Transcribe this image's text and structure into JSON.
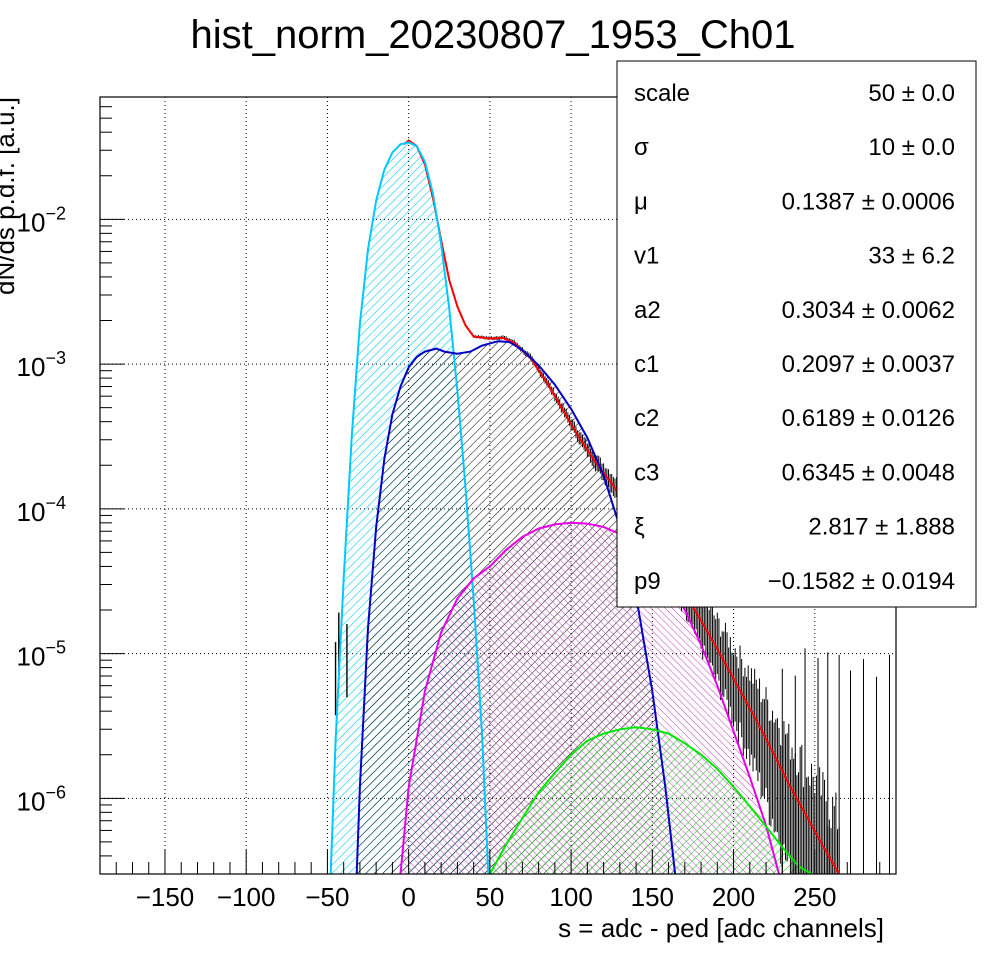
{
  "chart_data": {
    "type": "histogram",
    "title": "hist_norm_20230807_1953_Ch01",
    "xlabel": "s = adc - ped [adc channels]",
    "ylabel": "dN/ds p.d.f. [a.u.]",
    "x_range": [
      -190,
      300
    ],
    "y_range": [
      3e-07,
      0.07
    ],
    "y_scale": "log",
    "grid": true,
    "x_ticks": [
      {
        "value": -150,
        "label": "−150"
      },
      {
        "value": -100,
        "label": "−100"
      },
      {
        "value": -50,
        "label": "−50"
      },
      {
        "value": 0,
        "label": "0"
      },
      {
        "value": 50,
        "label": "50"
      },
      {
        "value": 100,
        "label": "100"
      },
      {
        "value": 150,
        "label": "150"
      },
      {
        "value": 200,
        "label": "200"
      },
      {
        "value": 250,
        "label": "250"
      }
    ],
    "y_ticks": [
      {
        "value": 0.01,
        "base": "10",
        "exp": "−2"
      },
      {
        "value": 0.001,
        "base": "10",
        "exp": "−3"
      },
      {
        "value": 0.0001,
        "base": "10",
        "exp": "−4"
      },
      {
        "value": 1e-05,
        "base": "10",
        "exp": "−5"
      },
      {
        "value": 1e-06,
        "base": "10",
        "exp": "−6"
      }
    ],
    "series": [
      {
        "color": "#ff0000",
        "fill": "none",
        "points": [
          [
            -3,
            0.033
          ],
          [
            0,
            0.035
          ],
          [
            5,
            0.032
          ],
          [
            10,
            0.024
          ],
          [
            15,
            0.014
          ],
          [
            20,
            0.0072
          ],
          [
            25,
            0.0038
          ],
          [
            30,
            0.0025
          ],
          [
            35,
            0.00185
          ],
          [
            40,
            0.00155
          ],
          [
            50,
            0.0015
          ],
          [
            58,
            0.00152
          ],
          [
            65,
            0.0014
          ],
          [
            75,
            0.0011
          ],
          [
            85,
            0.00075
          ],
          [
            95,
            0.00048
          ],
          [
            105,
            0.00031
          ],
          [
            115,
            0.00021
          ],
          [
            125,
            0.00015
          ],
          [
            135,
            0.000105
          ],
          [
            145,
            7.2e-05
          ],
          [
            155,
            4.8e-05
          ],
          [
            165,
            3.1e-05
          ],
          [
            175,
            2.1e-05
          ],
          [
            185,
            1.35e-05
          ],
          [
            195,
            8.5e-06
          ],
          [
            205,
            5.3e-06
          ],
          [
            215,
            3.3e-06
          ],
          [
            225,
            2e-06
          ],
          [
            235,
            1.2e-06
          ],
          [
            245,
            7.5e-07
          ],
          [
            255,
            4.7e-07
          ],
          [
            265,
            3e-07
          ]
        ]
      },
      {
        "color": "#00c8ff",
        "fill": "#00c8ff",
        "points": [
          [
            -48,
            3e-07
          ],
          [
            -45,
            2.5e-06
          ],
          [
            -40,
            3.3e-05
          ],
          [
            -35,
            0.00032
          ],
          [
            -30,
            0.0019
          ],
          [
            -25,
            0.0062
          ],
          [
            -20,
            0.0135
          ],
          [
            -15,
            0.022
          ],
          [
            -10,
            0.029
          ],
          [
            -5,
            0.033
          ],
          [
            0,
            0.034
          ],
          [
            5,
            0.032
          ],
          [
            10,
            0.025
          ],
          [
            15,
            0.015
          ],
          [
            20,
            0.0068
          ],
          [
            25,
            0.0024
          ],
          [
            30,
            0.00065
          ],
          [
            35,
            0.00014
          ],
          [
            40,
            2.4e-05
          ],
          [
            45,
            3e-06
          ],
          [
            49,
            3e-07
          ]
        ]
      },
      {
        "color": "#0000c8",
        "fill": "#000000",
        "points": [
          [
            -32,
            3e-07
          ],
          [
            -30,
            1.2e-06
          ],
          [
            -25,
            1.5e-05
          ],
          [
            -20,
            7.5e-05
          ],
          [
            -15,
            0.00022
          ],
          [
            -10,
            0.00045
          ],
          [
            -5,
            0.0007
          ],
          [
            0,
            0.00095
          ],
          [
            5,
            0.00112
          ],
          [
            10,
            0.00122
          ],
          [
            17,
            0.00128
          ],
          [
            22,
            0.00122
          ],
          [
            30,
            0.00118
          ],
          [
            38,
            0.00122
          ],
          [
            45,
            0.00134
          ],
          [
            55,
            0.00144
          ],
          [
            62,
            0.00142
          ],
          [
            70,
            0.00125
          ],
          [
            80,
            0.00098
          ],
          [
            90,
            0.00072
          ],
          [
            100,
            0.00049
          ],
          [
            110,
            0.00031
          ],
          [
            120,
            0.00017
          ],
          [
            130,
            7.5e-05
          ],
          [
            140,
            2.5e-05
          ],
          [
            150,
            5.5e-06
          ],
          [
            158,
            1.2e-06
          ],
          [
            164,
            3e-07
          ]
        ]
      },
      {
        "color": "#e600e6",
        "fill": "#c040c0",
        "points": [
          [
            -5,
            3e-07
          ],
          [
            0,
            1.2e-06
          ],
          [
            10,
            5.5e-06
          ],
          [
            20,
            1.4e-05
          ],
          [
            30,
            2.4e-05
          ],
          [
            40,
            3.3e-05
          ],
          [
            50,
            4e-05
          ],
          [
            60,
            5.2e-05
          ],
          [
            70,
            6.4e-05
          ],
          [
            80,
            7.3e-05
          ],
          [
            90,
            7.8e-05
          ],
          [
            100,
            8e-05
          ],
          [
            110,
            7.9e-05
          ],
          [
            120,
            7.5e-05
          ],
          [
            130,
            6.7e-05
          ],
          [
            140,
            5.7e-05
          ],
          [
            150,
            4.4e-05
          ],
          [
            160,
            3.2e-05
          ],
          [
            170,
            2e-05
          ],
          [
            180,
            1.15e-05
          ],
          [
            190,
            6e-06
          ],
          [
            200,
            2.9e-06
          ],
          [
            210,
            1.4e-06
          ],
          [
            220,
            6.5e-07
          ],
          [
            228,
            3e-07
          ]
        ]
      },
      {
        "color": "#00e600",
        "fill": "#00c800",
        "points": [
          [
            50,
            3e-07
          ],
          [
            60,
            4.8e-07
          ],
          [
            70,
            7.3e-07
          ],
          [
            80,
            1.1e-06
          ],
          [
            90,
            1.5e-06
          ],
          [
            100,
            2e-06
          ],
          [
            110,
            2.5e-06
          ],
          [
            120,
            2.8e-06
          ],
          [
            130,
            3e-06
          ],
          [
            140,
            3.1e-06
          ],
          [
            150,
            3e-06
          ],
          [
            160,
            2.8e-06
          ],
          [
            170,
            2.4e-06
          ],
          [
            180,
            2e-06
          ],
          [
            190,
            1.6e-06
          ],
          [
            200,
            1.2e-06
          ],
          [
            210,
            8.8e-07
          ],
          [
            220,
            6.4e-07
          ],
          [
            230,
            4.6e-07
          ],
          [
            240,
            3.4e-07
          ],
          [
            248,
            3e-07
          ]
        ]
      }
    ],
    "stats_box": [
      {
        "name": "scale",
        "value": "50 ± 0.0"
      },
      {
        "name": "σ",
        "value": "10 ± 0.0"
      },
      {
        "name": "μ",
        "value": "0.1387 ± 0.0006"
      },
      {
        "name": "v1",
        "value": "33 ± 6.2"
      },
      {
        "name": "a2",
        "value": "0.3034 ± 0.0062"
      },
      {
        "name": "c1",
        "value": "0.2097 ± 0.0037"
      },
      {
        "name": "c2",
        "value": "0.6189 ± 0.0126"
      },
      {
        "name": "c3",
        "value": "0.6345 ± 0.0048"
      },
      {
        "name": "ξ",
        "value": "2.817 ± 1.888"
      },
      {
        "name": "p9",
        "value": "−0.1582 ± 0.0194"
      }
    ]
  }
}
